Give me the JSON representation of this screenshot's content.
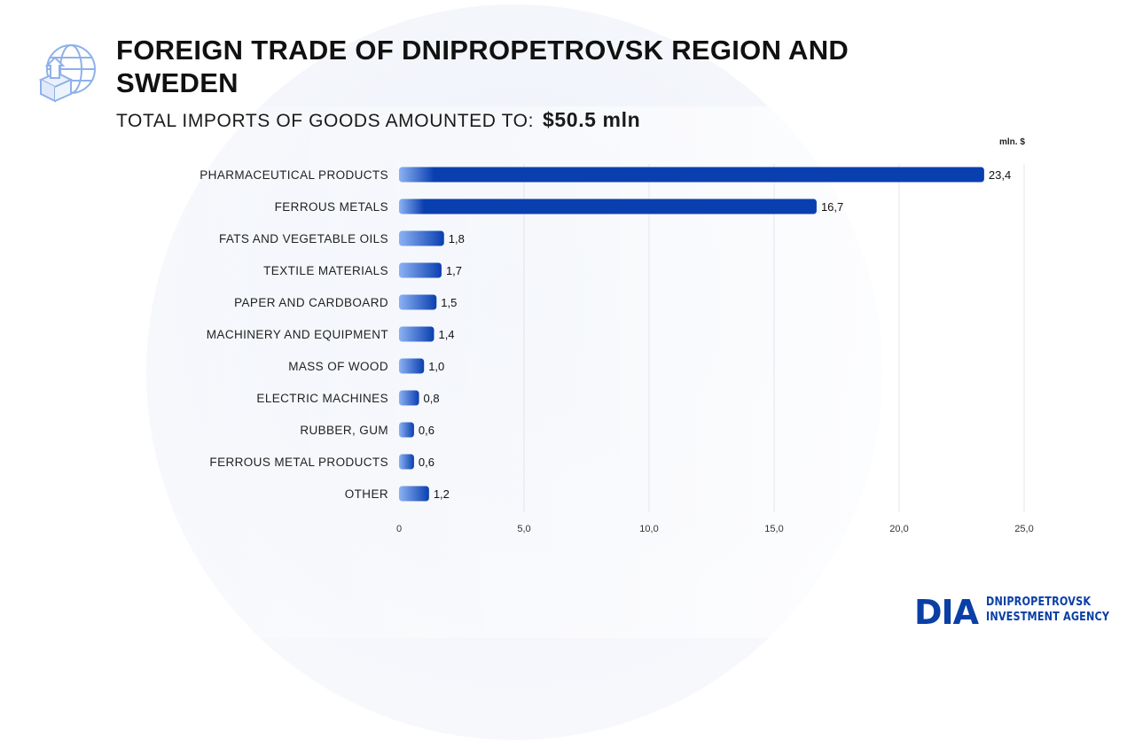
{
  "header": {
    "title": "FOREIGN TRADE OF DNIPROPETROVSK REGION AND SWEDEN",
    "subtitle_label": "TOTAL IMPORTS OF GOODS AMOUNTED TO:",
    "subtitle_value": "$50.5  mln"
  },
  "chart_data": {
    "type": "bar",
    "orientation": "horizontal",
    "unit_label": "mln. $",
    "categories": [
      "PHARMACEUTICAL PRODUCTS",
      "FERROUS METALS",
      "FATS AND VEGETABLE OILS",
      "TEXTILE MATERIALS",
      "PAPER AND CARDBOARD",
      "MACHINERY AND EQUIPMENT",
      "MASS OF WOOD",
      "ELECTRIC MACHINES",
      "RUBBER, GUM",
      "FERROUS METAL PRODUCTS",
      "OTHER"
    ],
    "values": [
      23.4,
      16.7,
      1.8,
      1.7,
      1.5,
      1.4,
      1.0,
      0.8,
      0.6,
      0.6,
      1.2
    ],
    "value_labels": [
      "23,4",
      "16,7",
      "1,8",
      "1,7",
      "1,5",
      "1,4",
      "1,0",
      "0,8",
      "0,6",
      "0,6",
      "1,2"
    ],
    "xlim": [
      0,
      25
    ],
    "x_ticks": [
      0,
      5,
      10,
      15,
      20,
      25
    ],
    "x_tick_labels": [
      "0",
      "5,0",
      "10,0",
      "15,0",
      "20,0",
      "25,0"
    ],
    "grid": true,
    "colors": {
      "bar_start": "#8cb2f3",
      "bar_end": "#0a3fb0",
      "grid": "#e3e6ec"
    }
  },
  "brand": {
    "mark": "DIA",
    "line1": "DNIPROPETROVSK",
    "line2": "INVESTMENT AGENCY",
    "color": "#0a3fa6"
  },
  "icons": {
    "header_icon": "globe-export-box-icon"
  }
}
